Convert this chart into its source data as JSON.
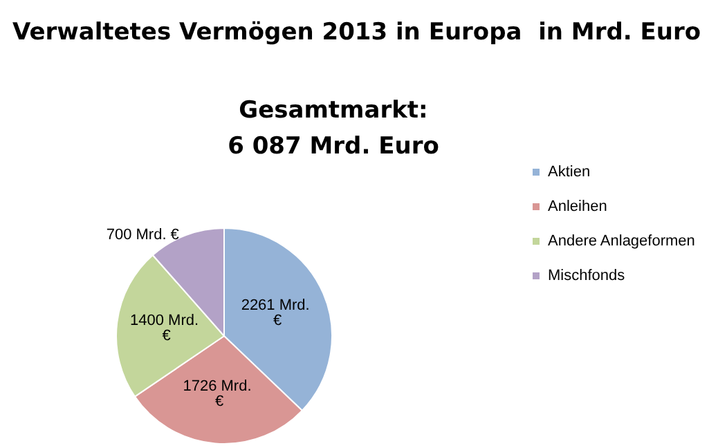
{
  "chart_data": {
    "type": "pie",
    "title": "Verwaltetes Vermögen 2013 in Europa  in Mrd. Euro",
    "subtitle": "Gesamtmarkt:\n6 087 Mrd. Euro",
    "categories": [
      "Aktien",
      "Anleihen",
      "Andere Anlageformen",
      "Mischfonds"
    ],
    "values": [
      2261,
      1726,
      1400,
      700
    ],
    "colors": [
      "#95b3d7",
      "#d99694",
      "#c3d69b",
      "#b3a2c7"
    ],
    "value_labels": [
      "2261 Mrd. €",
      "1726 Mrd. €",
      "1400 Mrd. €",
      "700 Mrd. €"
    ],
    "legend": "right"
  }
}
